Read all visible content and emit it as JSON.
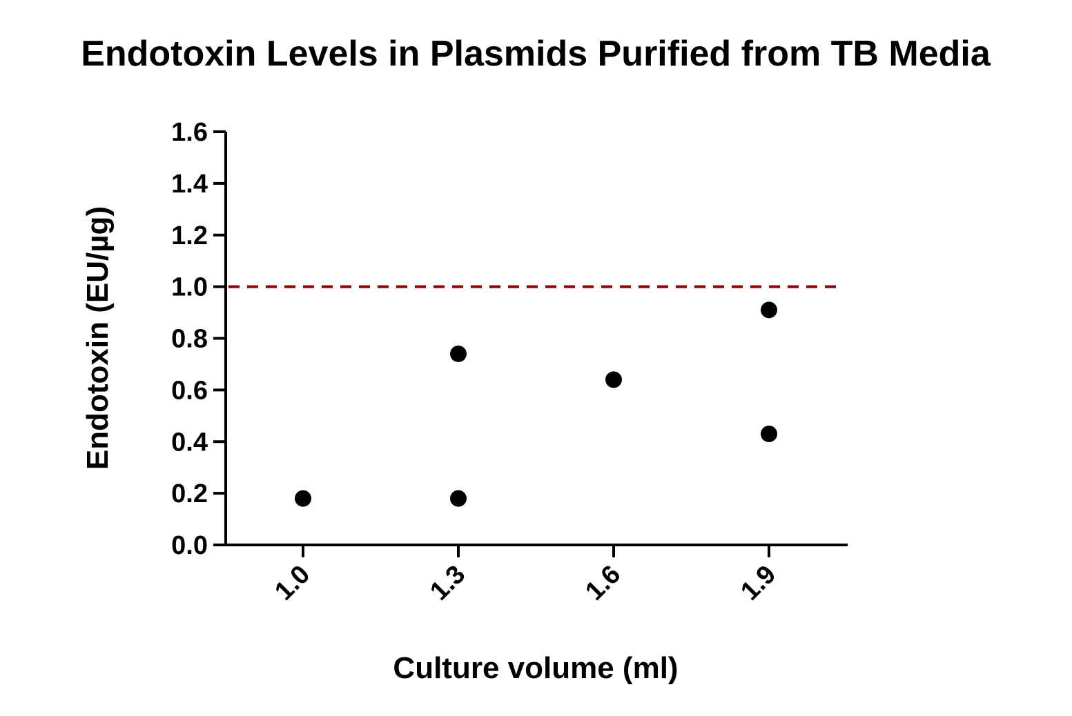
{
  "chart_data": {
    "type": "scatter",
    "title": "Endotoxin Levels in Plasmids Purified from TB Media",
    "xlabel": "Culture volume (ml)",
    "ylabel": "Endotoxin (EU/µg)",
    "x_ticks": [
      "1.0",
      "1.3",
      "1.6",
      "1.9"
    ],
    "y_ticks": [
      "0.0",
      "0.2",
      "0.4",
      "0.6",
      "0.8",
      "1.0",
      "1.2",
      "1.4",
      "1.6"
    ],
    "ylim": [
      0,
      1.6
    ],
    "points": [
      {
        "x": "1.0",
        "y": 0.18
      },
      {
        "x": "1.3",
        "y": 0.74
      },
      {
        "x": "1.3",
        "y": 0.18
      },
      {
        "x": "1.6",
        "y": 0.64
      },
      {
        "x": "1.9",
        "y": 0.91
      },
      {
        "x": "1.9",
        "y": 0.43
      }
    ],
    "reference_line": {
      "y": 1.0,
      "style": "dashed",
      "color": "#8b0000"
    },
    "marker_color": "#000000",
    "grid": false,
    "legend": "none"
  }
}
